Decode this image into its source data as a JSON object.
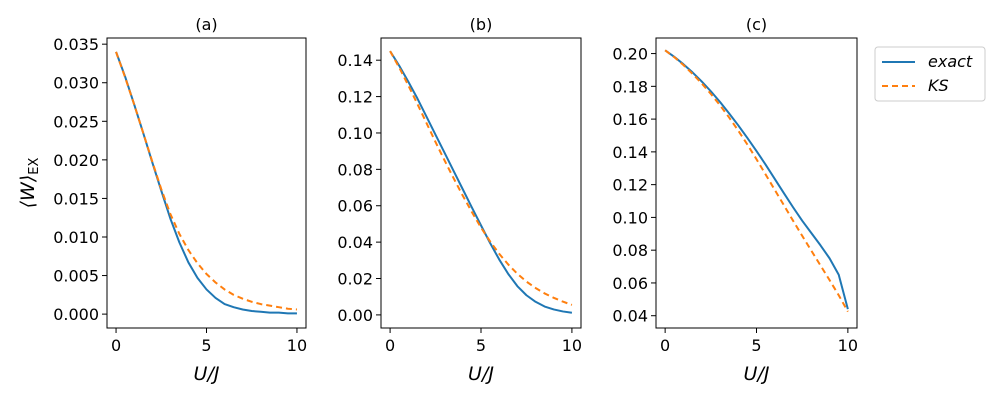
{
  "colors": {
    "exact": "#1f77b4",
    "KS": "#ff7f0e"
  },
  "legend": {
    "entries": [
      "exact",
      "KS"
    ],
    "placement": "outside-right-top"
  },
  "ylabel_shared": "⟨W⟩EX",
  "chart_data": [
    {
      "type": "line",
      "title": "(a)",
      "xlabel": "U/J",
      "ylabel": "⟨W⟩EX",
      "xlim": [
        -0.5,
        10.5
      ],
      "ylim": [
        -0.0018,
        0.0358
      ],
      "xticks": [
        0,
        5,
        10
      ],
      "yticks": [
        0.0,
        0.005,
        0.01,
        0.015,
        0.02,
        0.025,
        0.03,
        0.035
      ],
      "ytick_labels": [
        "0.000",
        "0.005",
        "0.010",
        "0.015",
        "0.020",
        "0.025",
        "0.030",
        "0.035"
      ],
      "x": [
        0,
        0.5,
        1,
        1.5,
        2,
        2.5,
        3,
        3.5,
        4,
        4.5,
        5,
        5.5,
        6,
        6.5,
        7,
        7.5,
        8,
        8.5,
        9,
        9.5,
        10
      ],
      "series": [
        {
          "name": "exact",
          "style": "solid",
          "values": [
            0.034,
            0.0308,
            0.0272,
            0.0235,
            0.0197,
            0.016,
            0.0124,
            0.0093,
            0.0067,
            0.0047,
            0.0032,
            0.0021,
            0.0013,
            0.0009,
            0.0006,
            0.0004,
            0.0003,
            0.0002,
            0.0002,
            0.0001,
            0.0001
          ]
        },
        {
          "name": "KS",
          "style": "dashed",
          "values": [
            0.034,
            0.0307,
            0.0272,
            0.0235,
            0.0198,
            0.0162,
            0.013,
            0.0104,
            0.0083,
            0.0066,
            0.0052,
            0.0041,
            0.0032,
            0.0025,
            0.002,
            0.0016,
            0.0013,
            0.0011,
            0.0009,
            0.0007,
            0.0006
          ]
        }
      ]
    },
    {
      "type": "line",
      "title": "(b)",
      "xlabel": "U/J",
      "xlim": [
        -0.5,
        10.5
      ],
      "ylim": [
        -0.0072,
        0.1522
      ],
      "xticks": [
        0,
        5,
        10
      ],
      "yticks": [
        0.0,
        0.02,
        0.04,
        0.06,
        0.08,
        0.1,
        0.12,
        0.14
      ],
      "ytick_labels": [
        "0.00",
        "0.02",
        "0.04",
        "0.06",
        "0.08",
        "0.10",
        "0.12",
        "0.14"
      ],
      "x": [
        0,
        0.5,
        1,
        1.5,
        2,
        2.5,
        3,
        3.5,
        4,
        4.5,
        5,
        5.5,
        6,
        6.5,
        7,
        7.5,
        8,
        8.5,
        9,
        9.5,
        10
      ],
      "series": [
        {
          "name": "exact",
          "style": "solid",
          "values": [
            0.145,
            0.137,
            0.1282,
            0.119,
            0.109,
            0.099,
            0.089,
            0.079,
            0.069,
            0.059,
            0.0492,
            0.0395,
            0.0305,
            0.0225,
            0.0158,
            0.0108,
            0.0072,
            0.0046,
            0.003,
            0.0019,
            0.0012
          ]
        },
        {
          "name": "KS",
          "style": "dashed",
          "values": [
            0.145,
            0.136,
            0.1262,
            0.116,
            0.1055,
            0.095,
            0.0848,
            0.075,
            0.0655,
            0.0565,
            0.048,
            0.0404,
            0.0336,
            0.0277,
            0.0226,
            0.0183,
            0.0148,
            0.0118,
            0.0094,
            0.0073,
            0.0055
          ]
        }
      ]
    },
    {
      "type": "line",
      "title": "(c)",
      "xlabel": "U/J",
      "xlim": [
        -0.5,
        10.5
      ],
      "ylim": [
        0.0325,
        0.2095
      ],
      "xticks": [
        0,
        5,
        10
      ],
      "yticks": [
        0.04,
        0.06,
        0.08,
        0.1,
        0.12,
        0.14,
        0.16,
        0.18,
        0.2
      ],
      "ytick_labels": [
        "0.04",
        "0.06",
        "0.08",
        "0.10",
        "0.12",
        "0.14",
        "0.16",
        "0.18",
        "0.20"
      ],
      "x": [
        0,
        0.5,
        1,
        1.5,
        2,
        2.5,
        3,
        3.5,
        4,
        4.5,
        5,
        5.5,
        6,
        6.5,
        7,
        7.5,
        8,
        8.5,
        9,
        9.5,
        10
      ],
      "series": [
        {
          "name": "exact",
          "style": "solid",
          "values": [
            0.202,
            0.198,
            0.1935,
            0.1885,
            0.183,
            0.177,
            0.1705,
            0.1635,
            0.1562,
            0.1485,
            0.1405,
            0.1322,
            0.1235,
            0.1148,
            0.1062,
            0.098,
            0.0905,
            0.083,
            0.075,
            0.065,
            0.044
          ]
        },
        {
          "name": "KS",
          "style": "dashed",
          "values": [
            0.202,
            0.1978,
            0.193,
            0.1876,
            0.1818,
            0.1754,
            0.1685,
            0.161,
            0.153,
            0.1445,
            0.1355,
            0.1262,
            0.1168,
            0.1074,
            0.098,
            0.0888,
            0.0797,
            0.0707,
            0.0617,
            0.0525,
            0.0425
          ]
        }
      ]
    }
  ]
}
